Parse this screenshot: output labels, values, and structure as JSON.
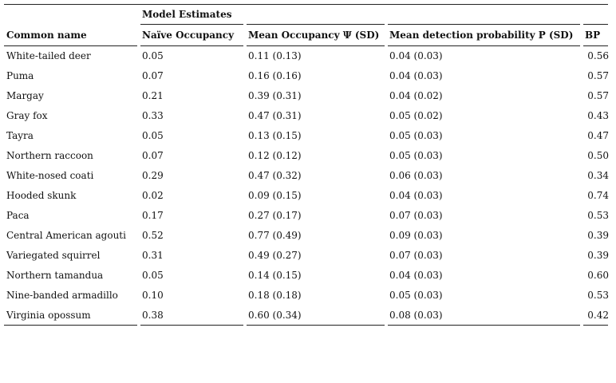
{
  "table": {
    "group_header": "Model Estimates",
    "columns": [
      "Common name",
      "Naïve Occupancy",
      "Mean Occupancy Ψ (SD)",
      "Mean detection probability P (SD)",
      "BP"
    ],
    "rows": [
      [
        "White-tailed deer",
        "0.05",
        "0.11 (0.13)",
        "0.04 (0.03)",
        "0.56"
      ],
      [
        "Puma",
        "0.07",
        "0.16 (0.16)",
        "0.04 (0.03)",
        "0.57"
      ],
      [
        "Margay",
        "0.21",
        "0.39 (0.31)",
        "0.04 (0.02)",
        "0.57"
      ],
      [
        "Gray fox",
        "0.33",
        "0.47 (0.31)",
        "0.05 (0.02)",
        "0.43"
      ],
      [
        "Tayra",
        "0.05",
        "0.13 (0.15)",
        "0.05 (0.03)",
        "0.47"
      ],
      [
        "Northern raccoon",
        "0.07",
        "0.12 (0.12)",
        "0.05 (0.03)",
        "0.50"
      ],
      [
        "White-nosed coati",
        "0.29",
        "0.47 (0.32)",
        "0.06 (0.03)",
        "0.34"
      ],
      [
        "Hooded skunk",
        "0.02",
        "0.09 (0.15)",
        "0.04 (0.03)",
        "0.74"
      ],
      [
        "Paca",
        "0.17",
        "0.27 (0.17)",
        "0.07 (0.03)",
        "0.53"
      ],
      [
        "Central American agouti",
        "0.52",
        "0.77 (0.49)",
        "0.09 (0.03)",
        "0.39"
      ],
      [
        "Variegated squirrel",
        "0.31",
        "0.49 (0.27)",
        "0.07 (0.03)",
        "0.39"
      ],
      [
        "Northern tamandua",
        "0.05",
        "0.14 (0.15)",
        "0.04 (0.03)",
        "0.60"
      ],
      [
        "Nine-banded armadillo",
        "0.10",
        "0.18 (0.18)",
        "0.05 (0.03)",
        "0.53"
      ],
      [
        "Virginia opossum",
        "0.38",
        "0.60 (0.34)",
        "0.08 (0.03)",
        "0.42"
      ]
    ]
  }
}
